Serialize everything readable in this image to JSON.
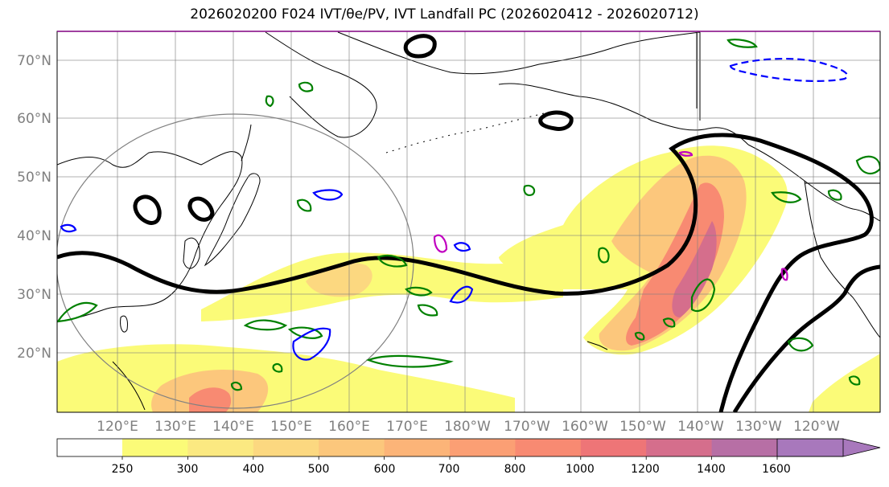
{
  "title": "2026020200 F024 IVT/θe/PV, IVT Landfall PC (2026020412 - 2026020712)",
  "lat_labels": [
    "70°N",
    "60°N",
    "50°N",
    "40°N",
    "30°N",
    "20°N"
  ],
  "lon_labels": [
    "120°E",
    "130°E",
    "140°E",
    "150°E",
    "160°E",
    "170°E",
    "180°W",
    "170°W",
    "160°W",
    "150°W",
    "140°W",
    "130°W",
    "120°W"
  ],
  "colorbar": {
    "ticks": [
      "250",
      "300",
      "400",
      "500",
      "600",
      "700",
      "800",
      "1000",
      "1200",
      "1400",
      "1600"
    ],
    "colors": [
      "#fbfb78",
      "#fbe981",
      "#fcd880",
      "#fcc77c",
      "#fcb478",
      "#fb9f74",
      "#f88a72",
      "#ee7577",
      "#d56e8c",
      "#b76fa5",
      "#a878bc"
    ]
  },
  "contour_colors": {
    "theta_e": "#000000",
    "pv_green": "#008000",
    "pv_blue": "#0000ff",
    "pv_magenta": "#c000c0",
    "circle": "#808080"
  }
}
